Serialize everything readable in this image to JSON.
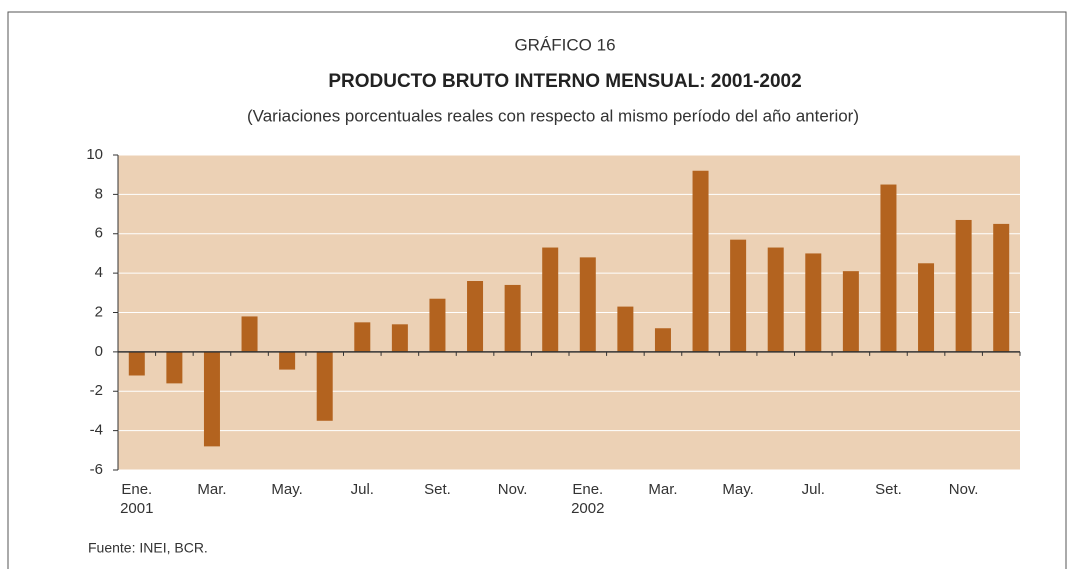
{
  "chart_data": {
    "type": "bar",
    "label": "GRÁFICO 16",
    "title": "PRODUCTO BRUTO INTERNO MENSUAL: 2001-2002",
    "subtitle": "(Variaciones porcentuales reales con respecto al mismo período del año anterior)",
    "source": "Fuente: INEI, BCR.",
    "categories": [
      "Ene.\n2001",
      null,
      "Mar.",
      null,
      "May.",
      null,
      "Jul.",
      null,
      "Set.",
      null,
      "Nov.",
      null,
      "Ene.\n2002",
      null,
      "Mar.",
      null,
      "May.",
      null,
      "Jul.",
      null,
      "Set.",
      null,
      "Nov.",
      null
    ],
    "values": [
      -1.2,
      -1.6,
      -4.8,
      1.8,
      -0.9,
      -3.5,
      1.5,
      1.4,
      2.7,
      3.6,
      3.4,
      5.3,
      4.8,
      2.3,
      1.2,
      9.2,
      5.7,
      5.3,
      5.0,
      4.1,
      8.5,
      4.5,
      6.7,
      6.5
    ],
    "color": "#b3631f",
    "ylim": [
      -6,
      10
    ],
    "yticks": [
      -6,
      -4,
      -2,
      0,
      2,
      4,
      6,
      8,
      10
    ],
    "grid": true
  }
}
